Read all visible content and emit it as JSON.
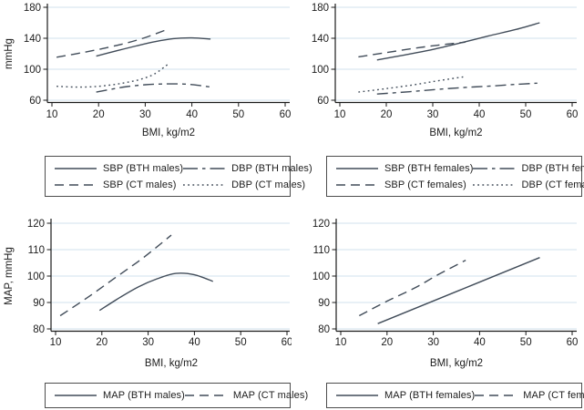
{
  "colors": {
    "line": "#414c59",
    "grid": "#d9e8f0",
    "axis": "#1a1a1a",
    "text": "#1c1c1c",
    "legend_border": "#4d4d4d",
    "background": "#ffffff"
  },
  "chart_data": [
    {
      "id": "top-left",
      "type": "line",
      "title": "",
      "xlabel": "BMI, kg/m2",
      "ylabel": "mmHg",
      "xlim": [
        10,
        60
      ],
      "ylim": [
        60,
        180
      ],
      "xticks": [
        10,
        20,
        30,
        40,
        50,
        60
      ],
      "yticks": [
        60,
        100,
        140,
        180
      ],
      "grid": "horizontal",
      "legend_position": "below",
      "legend_rows": 2,
      "legend_order": [
        0,
        2,
        1,
        3
      ],
      "series": [
        {
          "name": "SBP (BTH males)",
          "style": "solid",
          "points": [
            [
              19.5,
              117
            ],
            [
              24,
              124
            ],
            [
              28,
              130
            ],
            [
              32,
              135.5
            ],
            [
              36,
              139.5
            ],
            [
              40,
              140.5
            ],
            [
              44,
              139
            ]
          ]
        },
        {
          "name": "SBP (CT males)",
          "style": "longdash",
          "points": [
            [
              11,
              115.5
            ],
            [
              17,
              122
            ],
            [
              23,
              129.5
            ],
            [
              29,
              139
            ],
            [
              35,
              152
            ]
          ]
        },
        {
          "name": "DBP (BTH males)",
          "style": "dash-short",
          "points": [
            [
              19.5,
              70.5
            ],
            [
              23,
              74.5
            ],
            [
              26,
              77.5
            ],
            [
              30,
              80
            ],
            [
              34,
              81
            ],
            [
              38,
              81
            ],
            [
              41,
              79.5
            ],
            [
              44,
              77
            ]
          ]
        },
        {
          "name": "DBP (CT males)",
          "style": "dot",
          "points": [
            [
              11,
              78
            ],
            [
              15,
              77
            ],
            [
              19,
              77.5
            ],
            [
              23,
              80
            ],
            [
              26,
              83
            ],
            [
              29,
              87
            ],
            [
              32,
              94
            ],
            [
              35,
              107
            ]
          ]
        }
      ]
    },
    {
      "id": "top-right",
      "type": "line",
      "title": "",
      "xlabel": "BMI, kg/m2",
      "ylabel": "",
      "xlim": [
        10,
        60
      ],
      "ylim": [
        60,
        180
      ],
      "xticks": [
        10,
        20,
        30,
        40,
        50,
        60
      ],
      "yticks": [
        60,
        100,
        140,
        180
      ],
      "grid": "horizontal",
      "legend_position": "below",
      "legend_rows": 2,
      "legend_order": [
        0,
        2,
        1,
        3
      ],
      "series": [
        {
          "name": "SBP (BTH females)",
          "style": "solid",
          "points": [
            [
              18,
              112
            ],
            [
              24,
              118.5
            ],
            [
              30,
              125.5
            ],
            [
              36,
              134
            ],
            [
              42,
              143
            ],
            [
              48,
              151.5
            ],
            [
              53,
              160
            ]
          ]
        },
        {
          "name": "SBP (CT females)",
          "style": "longdash",
          "points": [
            [
              14,
              116
            ],
            [
              20,
              121.5
            ],
            [
              26,
              127
            ],
            [
              31,
              131
            ],
            [
              37,
              135
            ]
          ]
        },
        {
          "name": "DBP (BTH females)",
          "style": "dash-short",
          "points": [
            [
              18,
              68
            ],
            [
              25,
              71
            ],
            [
              31,
              74
            ],
            [
              37,
              76.5
            ],
            [
              43,
              78.5
            ],
            [
              48,
              80.5
            ],
            [
              52.5,
              82
            ]
          ]
        },
        {
          "name": "DBP (CT females)",
          "style": "dot",
          "points": [
            [
              14,
              70.5
            ],
            [
              20,
              75
            ],
            [
              26,
              80
            ],
            [
              31,
              85
            ],
            [
              37,
              90.5
            ]
          ]
        }
      ]
    },
    {
      "id": "bottom-left",
      "type": "line",
      "title": "",
      "xlabel": "BMI, kg/m2",
      "ylabel": "MAP, mmHg",
      "xlim": [
        10,
        60
      ],
      "ylim": [
        80,
        120
      ],
      "xticks": [
        10,
        20,
        30,
        40,
        50,
        60
      ],
      "yticks": [
        80,
        90,
        100,
        110,
        120
      ],
      "grid": "horizontal",
      "legend_position": "below",
      "legend_rows": 1,
      "legend_order": [
        0,
        1
      ],
      "series": [
        {
          "name": "MAP (BTH males)",
          "style": "solid",
          "points": [
            [
              19.5,
              87
            ],
            [
              24,
              92
            ],
            [
              28,
              96
            ],
            [
              32,
              99
            ],
            [
              36,
              101
            ],
            [
              40,
              100.5
            ],
            [
              44,
              98
            ]
          ]
        },
        {
          "name": "MAP (CT males)",
          "style": "longdash",
          "points": [
            [
              11,
              85
            ],
            [
              17,
              92
            ],
            [
              23,
              99.5
            ],
            [
              29,
              107
            ],
            [
              35,
              115.5
            ]
          ]
        }
      ]
    },
    {
      "id": "bottom-right",
      "type": "line",
      "title": "",
      "xlabel": "BMI, kg/m2",
      "ylabel": "",
      "xlim": [
        10,
        60
      ],
      "ylim": [
        80,
        120
      ],
      "xticks": [
        10,
        20,
        30,
        40,
        50,
        60
      ],
      "yticks": [
        80,
        90,
        100,
        110,
        120
      ],
      "grid": "horizontal",
      "legend_position": "below",
      "legend_rows": 1,
      "legend_order": [
        0,
        1
      ],
      "series": [
        {
          "name": "MAP (BTH females)",
          "style": "solid",
          "points": [
            [
              18,
              82
            ],
            [
              25,
              87
            ],
            [
              32,
              92
            ],
            [
              39,
              97
            ],
            [
              46,
              102
            ],
            [
              53,
              107
            ]
          ]
        },
        {
          "name": "MAP (CT females)",
          "style": "longdash",
          "points": [
            [
              14,
              85
            ],
            [
              20,
              90.5
            ],
            [
              26,
              95.5
            ],
            [
              31,
              100.5
            ],
            [
              37,
              106
            ]
          ]
        }
      ]
    }
  ]
}
